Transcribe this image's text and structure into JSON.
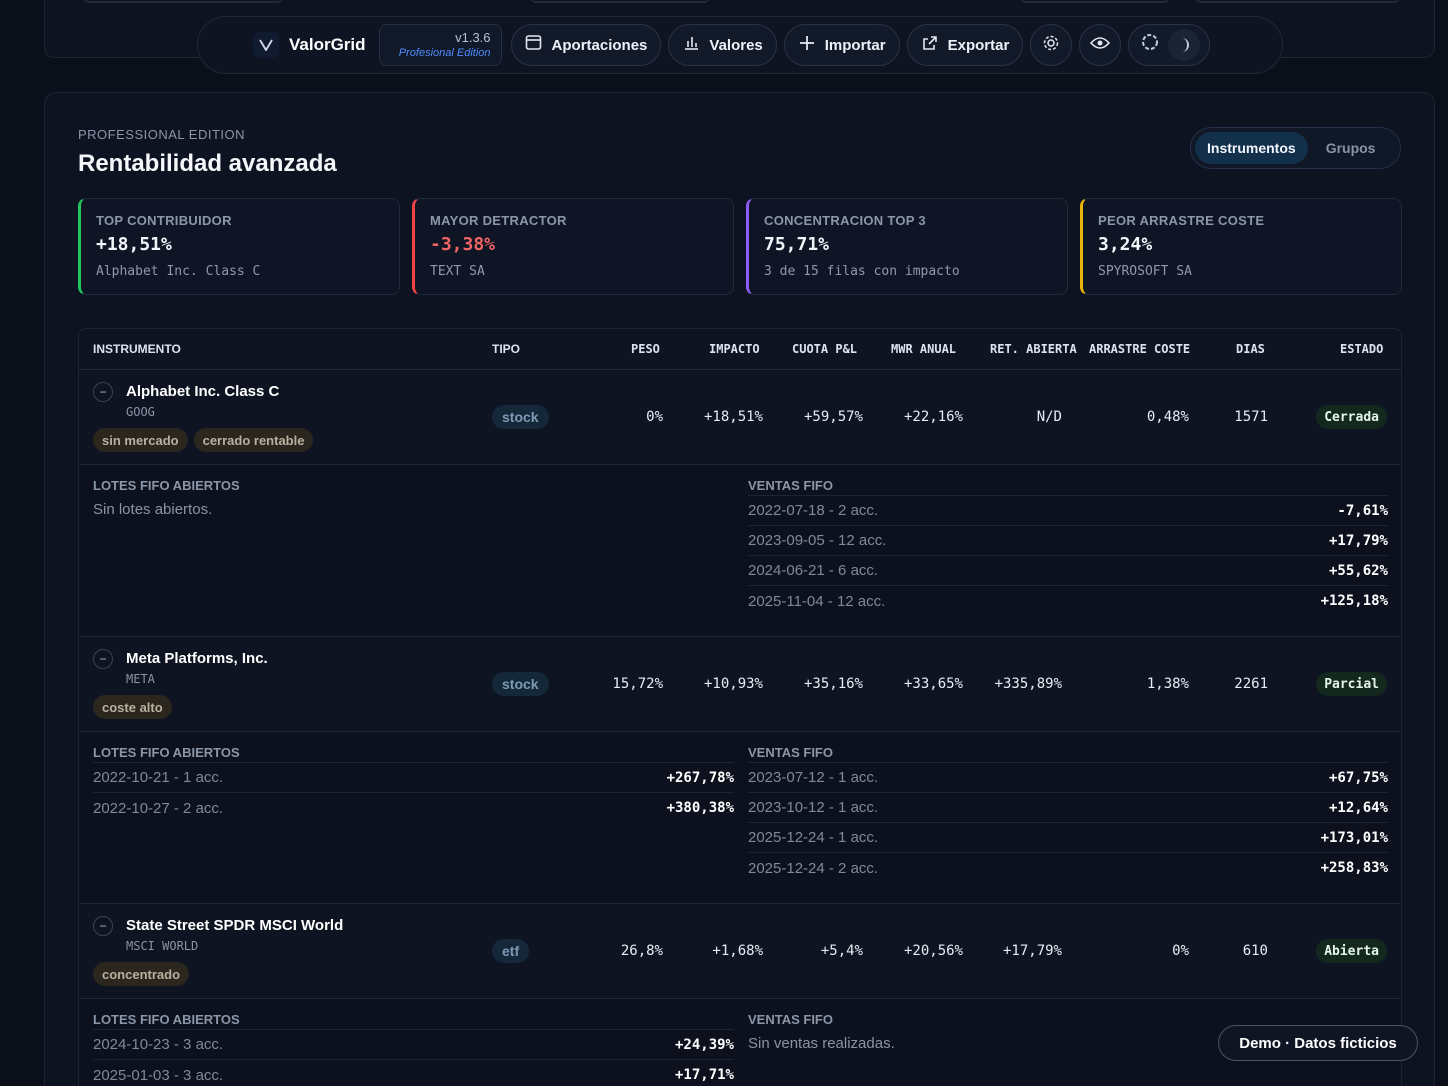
{
  "nav": {
    "brand": "ValorGrid",
    "version": "v1.3.6",
    "edition": "Profesional Edition",
    "buttons": [
      {
        "label": "Aportaciones",
        "icon": "calendar-icon"
      },
      {
        "label": "Valores",
        "icon": "bar-chart-icon"
      },
      {
        "label": "Importar",
        "icon": "plus-icon"
      },
      {
        "label": "Exportar",
        "icon": "external-link-icon"
      }
    ]
  },
  "header": {
    "kicker": "PROFESSIONAL EDITION",
    "title": "Rentabilidad avanzada",
    "tabs": [
      "Instrumentos",
      "Grupos"
    ]
  },
  "cards": [
    {
      "label": "TOP CONTRIBUIDOR",
      "value": "+18,51%",
      "sub": "Alphabet Inc. Class C",
      "accent": "#22c55e",
      "value_color": "#f2f5fa"
    },
    {
      "label": "MAYOR DETRACTOR",
      "value": "-3,38%",
      "sub": "TEXT SA",
      "accent": "#ef4444",
      "value_color": "#f06464"
    },
    {
      "label": "CONCENTRACION TOP 3",
      "value": "75,71%",
      "sub": "3 de 15 filas con impacto",
      "accent": "#8b5cf6",
      "value_color": "#f2f5fa"
    },
    {
      "label": "PEOR ARRASTRE COSTE",
      "value": "3,24%",
      "sub": "SPYROSOFT SA",
      "accent": "#eab308",
      "value_color": "#f2f5fa"
    }
  ],
  "table": {
    "headers": {
      "instrumento": "INSTRUMENTO",
      "tipo": "TIPO",
      "peso": "PESO",
      "impacto": "IMPACTO",
      "cuota": "CUOTA P&L",
      "mwr": "MWR ANUAL",
      "ret": "RET. ABIERTA",
      "arrastre": "ARRASTRE COSTE",
      "dias": "DIAS",
      "estado": "ESTADO"
    },
    "lots_open_title": "LOTES FIFO ABIERTOS",
    "sales_title": "VENTAS FIFO",
    "rows": [
      {
        "name": "Alphabet Inc. Class C",
        "ticker": "GOOG",
        "tags": [
          "sin mercado",
          "cerrado rentable"
        ],
        "type": "stock",
        "peso": "0%",
        "impacto": "+18,51%",
        "cuota": "+59,57%",
        "mwr": "+22,16%",
        "ret": "N/D",
        "arrastre": "0,48%",
        "dias": "1571",
        "estado": "Cerrada",
        "open_lots_empty": "Sin lotes abiertos.",
        "sales": [
          {
            "date": "2022-07-18 - 2 acc.",
            "pct": "-7,61%"
          },
          {
            "date": "2023-09-05 - 12 acc.",
            "pct": "+17,79%"
          },
          {
            "date": "2024-06-21 - 6 acc.",
            "pct": "+55,62%"
          },
          {
            "date": "2025-11-04 - 12 acc.",
            "pct": "+125,18%"
          }
        ]
      },
      {
        "name": "Meta Platforms, Inc.",
        "ticker": "META",
        "tags": [
          "coste alto"
        ],
        "type": "stock",
        "peso": "15,72%",
        "impacto": "+10,93%",
        "cuota": "+35,16%",
        "mwr": "+33,65%",
        "ret": "+335,89%",
        "arrastre": "1,38%",
        "dias": "2261",
        "estado": "Parcial",
        "open_lots": [
          {
            "date": "2022-10-21 - 1 acc.",
            "pct": "+267,78%"
          },
          {
            "date": "2022-10-27 - 2 acc.",
            "pct": "+380,38%"
          }
        ],
        "sales": [
          {
            "date": "2023-07-12 - 1 acc.",
            "pct": "+67,75%"
          },
          {
            "date": "2023-10-12 - 1 acc.",
            "pct": "+12,64%"
          },
          {
            "date": "2025-12-24 - 1 acc.",
            "pct": "+173,01%"
          },
          {
            "date": "2025-12-24 - 2 acc.",
            "pct": "+258,83%"
          }
        ]
      },
      {
        "name": "State Street SPDR MSCI World",
        "ticker": "MSCI WORLD",
        "tags": [
          "concentrado"
        ],
        "type": "etf",
        "peso": "26,8%",
        "impacto": "+1,68%",
        "cuota": "+5,4%",
        "mwr": "+20,56%",
        "ret": "+17,79%",
        "arrastre": "0%",
        "dias": "610",
        "estado": "Abierta",
        "open_lots": [
          {
            "date": "2024-10-23 - 3 acc.",
            "pct": "+24,39%"
          },
          {
            "date": "2025-01-03 - 3 acc.",
            "pct": "+17,71%"
          }
        ],
        "sales_empty": "Sin ventas realizadas."
      }
    ]
  },
  "demo_badge": "Demo · Datos ficticios"
}
